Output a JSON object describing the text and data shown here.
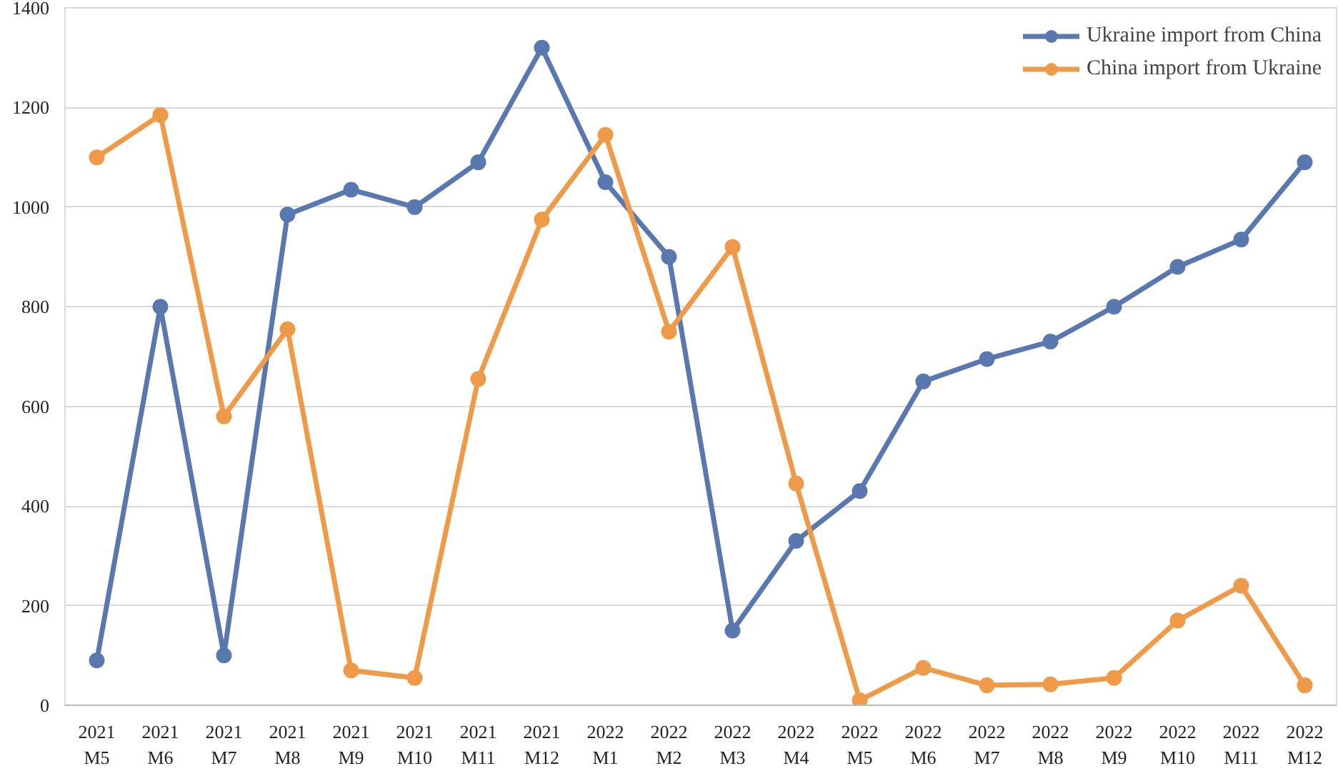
{
  "chart_data": {
    "type": "line",
    "categories": [
      "2021\nM5",
      "2021\nM6",
      "2021\nM7",
      "2021\nM8",
      "2021\nM9",
      "2021\nM10",
      "2021\nM11",
      "2021\nM12",
      "2022\nM1",
      "2022\nM2",
      "2022\nM3",
      "2022\nM4",
      "2022\nM5",
      "2022\nM6",
      "2022\nM7",
      "2022\nM8",
      "2022\nM9",
      "2022\nM10",
      "2022\nM11",
      "2022\nM12"
    ],
    "series": [
      {
        "name": "Ukraine import from China",
        "color": "#5a78b0",
        "values": [
          90,
          800,
          100,
          985,
          1035,
          1000,
          1090,
          1320,
          1050,
          900,
          150,
          330,
          430,
          650,
          695,
          730,
          800,
          880,
          935,
          1090
        ]
      },
      {
        "name": "China import from Ukraine",
        "color": "#ee9a48",
        "values": [
          1100,
          1185,
          580,
          755,
          70,
          55,
          655,
          975,
          1145,
          750,
          920,
          445,
          10,
          75,
          40,
          42,
          55,
          170,
          240,
          40
        ]
      }
    ],
    "ylim": [
      0,
      1400
    ],
    "yticks": [
      0,
      200,
      400,
      600,
      800,
      1000,
      1200,
      1400
    ],
    "grid": "y",
    "legend": "top right",
    "marker": "circle",
    "line_style": "solid"
  }
}
